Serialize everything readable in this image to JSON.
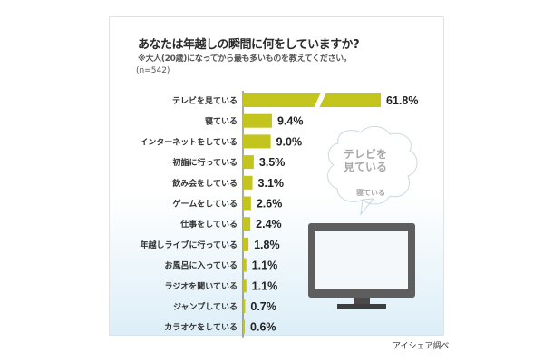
{
  "title": "あなたは年越しの瞬間に何をしていますか?",
  "subtitle": "※大人(20歳)になってから最も多いものを教えてください。",
  "sample": "(n=542)",
  "source": "アイシェア調べ",
  "bubble": {
    "line1": "テレビを",
    "line2": "見ている",
    "sub": "寝ている"
  },
  "colors": {
    "bar": "#c4c41e",
    "axis": "#555555"
  },
  "chart_data": {
    "type": "bar",
    "orientation": "horizontal",
    "title": "あなたは年越しの瞬間に何をしていますか?",
    "categories": [
      "テレビを見ている",
      "寝ている",
      "インターネットをしている",
      "初詣に行っている",
      "飲み会をしている",
      "ゲームをしている",
      "仕事をしている",
      "年越しライブに行っている",
      "お風呂に入っている",
      "ラジオを聞いている",
      "ジャンプしている",
      "カラオケをしている"
    ],
    "values": [
      61.8,
      9.4,
      9.0,
      3.5,
      3.1,
      2.6,
      2.4,
      1.8,
      1.1,
      1.1,
      0.7,
      0.6
    ],
    "value_labels": [
      "61.8%",
      "9.4%",
      "9.0%",
      "3.5%",
      "3.1%",
      "2.6%",
      "2.4%",
      "1.8%",
      "1.1%",
      "1.1%",
      "0.7%",
      "0.6%"
    ],
    "unit": "%",
    "axis_break": true
  }
}
